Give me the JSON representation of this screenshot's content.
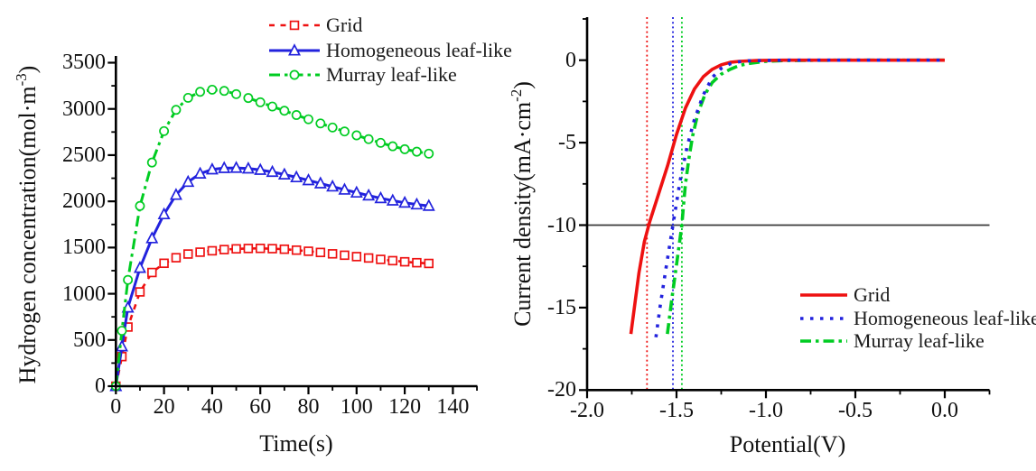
{
  "page": {
    "background": "#ffffff"
  },
  "colors": {
    "grid_red": "#ee1111",
    "homogeneous_blue": "#2222dd",
    "murray_green": "#00cc22",
    "axis_black": "#000000",
    "ref_line_dark": "#3b3b3b"
  },
  "chart_data": [
    {
      "id": "hydrogen-concentration-vs-time",
      "type": "line",
      "title": "",
      "xlabel": "Time(s)",
      "ylabel": "Hydrogen concentration(mol·m-3)",
      "ylabel_parts": {
        "main": "Hydrogen concentration(mol·m",
        "sup": "-3",
        "close": ")"
      },
      "xlim": [
        0,
        150
      ],
      "ylim": [
        0,
        3500
      ],
      "x_ticks": [
        0,
        20,
        40,
        60,
        80,
        100,
        120,
        140
      ],
      "x_tick_labels": [
        "0",
        "20",
        "40",
        "60",
        "80",
        "100",
        "120",
        "140"
      ],
      "x_minor_step": 10,
      "y_ticks": [
        0,
        500,
        1000,
        1500,
        2000,
        2500,
        3000,
        3500
      ],
      "y_tick_labels": [
        "0",
        "500",
        "1000",
        "1500",
        "2000",
        "2500",
        "3000",
        "3500"
      ],
      "y_minor_step": 250,
      "grid": false,
      "legend_position": "top-center",
      "x": [
        0,
        2.5,
        5,
        10,
        15,
        20,
        25,
        30,
        35,
        40,
        45,
        50,
        55,
        60,
        65,
        70,
        75,
        80,
        85,
        90,
        95,
        100,
        105,
        110,
        115,
        120,
        125,
        130
      ],
      "series": [
        {
          "name": "Grid",
          "color": "#ee1111",
          "line": "dash",
          "marker": "square",
          "values": [
            0,
            320,
            640,
            1020,
            1230,
            1330,
            1390,
            1430,
            1450,
            1465,
            1478,
            1486,
            1490,
            1491,
            1488,
            1482,
            1472,
            1460,
            1447,
            1432,
            1417,
            1402,
            1387,
            1372,
            1358,
            1346,
            1336,
            1328
          ]
        },
        {
          "name": "Homogeneous leaf-like",
          "color": "#2222dd",
          "line": "solid",
          "marker": "triangle",
          "values": [
            0,
            430,
            850,
            1280,
            1600,
            1860,
            2070,
            2210,
            2300,
            2345,
            2360,
            2362,
            2355,
            2340,
            2318,
            2290,
            2260,
            2228,
            2194,
            2160,
            2126,
            2094,
            2063,
            2034,
            2008,
            1985,
            1966,
            1951
          ]
        },
        {
          "name": "Murray leaf-like",
          "color": "#00cc22",
          "line": "dashdot",
          "marker": "circle",
          "values": [
            0,
            600,
            1150,
            1950,
            2420,
            2760,
            2990,
            3120,
            3185,
            3208,
            3195,
            3160,
            3118,
            3072,
            3026,
            2980,
            2934,
            2888,
            2843,
            2799,
            2756,
            2714,
            2673,
            2633,
            2596,
            2564,
            2537,
            2516
          ]
        }
      ]
    },
    {
      "id": "current-density-vs-potential",
      "type": "line",
      "title": "",
      "xlabel": "Potential(V)",
      "ylabel": "Current density(mA·cm-2)",
      "ylabel_parts": {
        "main": "Current density(mA·cm",
        "sup": "-2",
        "close": ")"
      },
      "xlim": [
        -2.0,
        0.25
      ],
      "ylim": [
        -20,
        2.5
      ],
      "x_ticks": [
        -2.0,
        -1.5,
        -1.0,
        -0.5,
        0.0
      ],
      "x_tick_labels": [
        "-2.0",
        "-1.5",
        "-1.0",
        "-0.5",
        "0.0"
      ],
      "x_minor_step": 0.25,
      "y_ticks": [
        0,
        -5,
        -10,
        -15,
        -20
      ],
      "y_tick_labels": [
        "0",
        "-5",
        "-10",
        "-15",
        "-20"
      ],
      "y_minor_step": 2.5,
      "grid": false,
      "legend_position": "bottom-right",
      "series": [
        {
          "name": "Grid",
          "color": "#ee1111",
          "line": "solid",
          "marker": "none",
          "points": [
            [
              0,
              0
            ],
            [
              -0.3,
              0
            ],
            [
              -0.6,
              0
            ],
            [
              -0.9,
              0
            ],
            [
              -1.05,
              -0.02
            ],
            [
              -1.15,
              -0.07
            ],
            [
              -1.2,
              -0.13
            ],
            [
              -1.25,
              -0.28
            ],
            [
              -1.3,
              -0.55
            ],
            [
              -1.35,
              -1.0
            ],
            [
              -1.4,
              -1.75
            ],
            [
              -1.45,
              -2.9
            ],
            [
              -1.5,
              -4.5
            ],
            [
              -1.55,
              -6.4
            ],
            [
              -1.6,
              -8.1
            ],
            [
              -1.65,
              -9.8
            ],
            [
              -1.68,
              -11.0
            ],
            [
              -1.71,
              -12.9
            ],
            [
              -1.755,
              -16.6
            ]
          ]
        },
        {
          "name": "Homogeneous leaf-like",
          "color": "#2222dd",
          "line": "dotted",
          "marker": "none",
          "points": [
            [
              0,
              0
            ],
            [
              -0.3,
              0
            ],
            [
              -0.6,
              0
            ],
            [
              -0.9,
              0
            ],
            [
              -1.1,
              -0.04
            ],
            [
              -1.15,
              -0.1
            ],
            [
              -1.2,
              -0.22
            ],
            [
              -1.25,
              -0.5
            ],
            [
              -1.3,
              -1.05
            ],
            [
              -1.35,
              -2.1
            ],
            [
              -1.4,
              -3.6
            ],
            [
              -1.44,
              -5.2
            ],
            [
              -1.48,
              -7.3
            ],
            [
              -1.52,
              -10.0
            ],
            [
              -1.56,
              -12.7
            ],
            [
              -1.59,
              -14.8
            ],
            [
              -1.615,
              -16.8
            ]
          ]
        },
        {
          "name": "Murray leaf-like",
          "color": "#00cc22",
          "line": "dashdot",
          "marker": "none",
          "points": [
            [
              0,
              0
            ],
            [
              -0.3,
              0
            ],
            [
              -0.6,
              0
            ],
            [
              -0.9,
              -0.02
            ],
            [
              -1.0,
              -0.07
            ],
            [
              -1.1,
              -0.2
            ],
            [
              -1.15,
              -0.33
            ],
            [
              -1.2,
              -0.55
            ],
            [
              -1.25,
              -0.85
            ],
            [
              -1.3,
              -1.35
            ],
            [
              -1.34,
              -2.05
            ],
            [
              -1.38,
              -3.2
            ],
            [
              -1.41,
              -4.6
            ],
            [
              -1.43,
              -5.9
            ],
            [
              -1.45,
              -7.5
            ],
            [
              -1.46,
              -8.7
            ],
            [
              -1.47,
              -10.0
            ],
            [
              -1.5,
              -12.4
            ],
            [
              -1.525,
              -14.4
            ],
            [
              -1.551,
              -16.6
            ]
          ]
        }
      ],
      "reference_lines": {
        "horizontal": [
          {
            "y": -10,
            "color": "#3b3b3b",
            "style": "solid"
          }
        ],
        "vertical": [
          {
            "x": -1.665,
            "color": "#ee1111",
            "style": "dotted"
          },
          {
            "x": -1.52,
            "color": "#2222dd",
            "style": "dotted"
          },
          {
            "x": -1.47,
            "color": "#00cc22",
            "style": "dotted"
          }
        ]
      }
    }
  ]
}
